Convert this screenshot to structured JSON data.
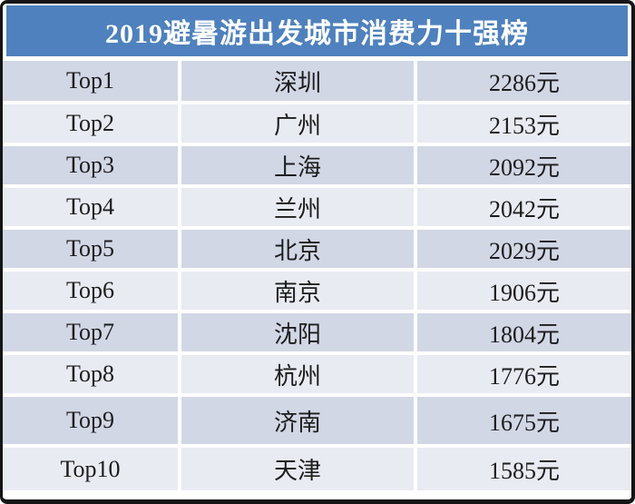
{
  "title": "2019避暑游出发城市消费力十强榜",
  "table": {
    "rows": [
      {
        "rank": "Top1",
        "city": "深圳",
        "price": "2286元"
      },
      {
        "rank": "Top2",
        "city": "广州",
        "price": "2153元"
      },
      {
        "rank": "Top3",
        "city": "上海",
        "price": "2092元"
      },
      {
        "rank": "Top4",
        "city": "兰州",
        "price": "2042元"
      },
      {
        "rank": "Top5",
        "city": "北京",
        "price": "2029元"
      },
      {
        "rank": "Top6",
        "city": "南京",
        "price": "1906元"
      },
      {
        "rank": "Top7",
        "city": "沈阳",
        "price": "1804元"
      },
      {
        "rank": "Top8",
        "city": "杭州",
        "price": "1776元"
      },
      {
        "rank": "Top9",
        "city": "济南",
        "price": "1675元"
      },
      {
        "rank": "Top10",
        "city": "天津",
        "price": "1585元"
      }
    ]
  },
  "colors": {
    "header_bg": "#4E81BD",
    "row_dark": "#D2D7E6",
    "row_light": "#E9EBF3",
    "frame_border": "#141414",
    "title_text": "#FFFFFF",
    "body_text": "#1C1C1C"
  },
  "chart_data": {
    "type": "table",
    "title": "2019避暑游出发城市消费力十强榜",
    "ranks": [
      "Top1",
      "Top2",
      "Top3",
      "Top4",
      "Top5",
      "Top6",
      "Top7",
      "Top8",
      "Top9",
      "Top10"
    ],
    "cities": [
      "深圳",
      "广州",
      "上海",
      "兰州",
      "北京",
      "南京",
      "沈阳",
      "杭州",
      "济南",
      "天津"
    ],
    "values_yuan": [
      2286,
      2153,
      2092,
      2042,
      2029,
      1906,
      1804,
      1776,
      1675,
      1585
    ],
    "value_unit": "元",
    "layout": "3 columns: rank | city | spend; blue title header; alternating blue-gray striped rows"
  }
}
